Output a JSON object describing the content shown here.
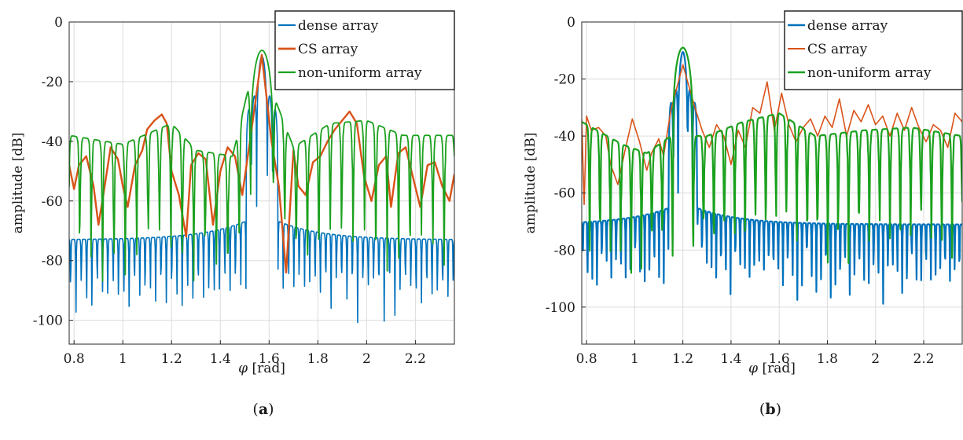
{
  "figure": {
    "captions": [
      {
        "open": "(",
        "letter": "a",
        "close": ")"
      },
      {
        "open": "(",
        "letter": "b",
        "close": ")"
      }
    ]
  },
  "chart_data": [
    {
      "type": "line",
      "panel": "a",
      "xlabel_symbol": "φ",
      "xlabel_unit": "[rad]",
      "ylabel": "amplitude [dB]",
      "xlim": [
        0.78,
        2.36
      ],
      "ylim": [
        -108,
        0
      ],
      "xticks": [
        0.8,
        1,
        1.2,
        1.4,
        1.6,
        1.8,
        2,
        2.2
      ],
      "xtick_labels": [
        "0.8",
        "1",
        "1.2",
        "1.4",
        "1.6",
        "1.8",
        "2",
        "2.2"
      ],
      "yticks": [
        0,
        -20,
        -40,
        -60,
        -80,
        -100
      ],
      "ytick_labels": [
        "0",
        "-20",
        "-40",
        "-60",
        "-80",
        "-100"
      ],
      "grid": true,
      "legend_position": "top-right",
      "series": [
        {
          "name": "dense array",
          "color": "#0072BD",
          "peak": 1.5708,
          "peak_value": -11.5,
          "lobe_period": 0.0218,
          "sidelobe_center": -73.0,
          "sidelobe_rise": 9.0,
          "null_depth": 24.0
        },
        {
          "name": "CS array",
          "color": "#D95319",
          "peak": 1.5708,
          "peak_value": -11.0,
          "x": [
            0.78,
            0.8,
            0.82,
            0.85,
            0.88,
            0.9,
            0.92,
            0.95,
            0.98,
            1.0,
            1.02,
            1.05,
            1.08,
            1.1,
            1.13,
            1.16,
            1.18,
            1.2,
            1.23,
            1.26,
            1.28,
            1.31,
            1.34,
            1.37,
            1.4,
            1.43,
            1.46,
            1.49,
            1.53,
            1.57,
            1.61,
            1.64,
            1.67,
            1.7,
            1.72,
            1.75,
            1.78,
            1.81,
            1.84,
            1.87,
            1.9,
            1.93,
            1.96,
            1.99,
            2.02,
            2.05,
            2.08,
            2.1,
            2.13,
            2.16,
            2.19,
            2.22,
            2.25,
            2.28,
            2.31,
            2.34,
            2.36
          ],
          "y": [
            -48,
            -56,
            -48,
            -45,
            -55,
            -68,
            -58,
            -42,
            -46,
            -55,
            -62,
            -48,
            -43,
            -36,
            -33,
            -31,
            -34,
            -50,
            -58,
            -72,
            -48,
            -44,
            -46,
            -68,
            -50,
            -42,
            -45,
            -58,
            -35,
            -11,
            -40,
            -55,
            -84,
            -43,
            -55,
            -58,
            -47,
            -45,
            -40,
            -36,
            -33,
            -30,
            -34,
            -52,
            -60,
            -48,
            -45,
            -62,
            -44,
            -42,
            -52,
            -62,
            -48,
            -47,
            -55,
            -60,
            -51
          ]
        },
        {
          "name": "non-uniform array",
          "color": "#1BA11E",
          "peak": 1.5708,
          "peak_value": -9.5,
          "lobe_period": 0.0467,
          "envelope": [
            [
              0.78,
              -38
            ],
            [
              1.0,
              -41
            ],
            [
              1.2,
              -34
            ],
            [
              1.3,
              -43
            ],
            [
              1.45,
              -45
            ],
            [
              1.55,
              -10
            ],
            [
              1.7,
              -42
            ],
            [
              1.85,
              -34
            ],
            [
              2.0,
              -33
            ],
            [
              2.15,
              -38
            ],
            [
              2.36,
              -38
            ]
          ],
          "null_depth": 40.0
        }
      ]
    },
    {
      "type": "line",
      "panel": "b",
      "xlabel_symbol": "φ",
      "xlabel_unit": "[rad]",
      "ylabel": "amplitude [dB]",
      "xlim": [
        0.78,
        2.36
      ],
      "ylim": [
        -113,
        0
      ],
      "xticks": [
        0.8,
        1,
        1.2,
        1.4,
        1.6,
        1.8,
        2,
        2.2
      ],
      "xtick_labels": [
        "0.8",
        "1",
        "1.2",
        "1.4",
        "1.6",
        "1.8",
        "2",
        "2.2"
      ],
      "yticks": [
        0,
        -20,
        -40,
        -60,
        -80,
        -100
      ],
      "ytick_labels": [
        "0",
        "-20",
        "-40",
        "-60",
        "-80",
        "-100"
      ],
      "grid": true,
      "legend_position": "top-right",
      "series": [
        {
          "name": "dense array",
          "color": "#0072BD",
          "peak": 1.2,
          "peak_value": -10.5,
          "lobe_period": 0.0198,
          "sidelobe_center": -71.0,
          "sidelobe_rise": 8.0,
          "null_depth": 24.0
        },
        {
          "name": "CS array",
          "color": "#D95319",
          "peak": 1.2,
          "peak_value": -15.0,
          "x": [
            0.78,
            0.79,
            0.8,
            0.82,
            0.85,
            0.88,
            0.9,
            0.93,
            0.96,
            0.99,
            1.02,
            1.05,
            1.07,
            1.1,
            1.12,
            1.15,
            1.2,
            1.25,
            1.28,
            1.31,
            1.34,
            1.37,
            1.4,
            1.43,
            1.46,
            1.49,
            1.52,
            1.55,
            1.58,
            1.61,
            1.64,
            1.67,
            1.7,
            1.73,
            1.76,
            1.79,
            1.82,
            1.85,
            1.88,
            1.91,
            1.94,
            1.97,
            2.0,
            2.03,
            2.06,
            2.09,
            2.12,
            2.15,
            2.18,
            2.21,
            2.24,
            2.27,
            2.3,
            2.33,
            2.36
          ],
          "y": [
            -34,
            -64,
            -33,
            -38,
            -37,
            -40,
            -50,
            -57,
            -45,
            -34,
            -42,
            -52,
            -46,
            -41,
            -47,
            -31,
            -15,
            -30,
            -38,
            -44,
            -36,
            -40,
            -50,
            -38,
            -44,
            -30,
            -32,
            -21,
            -38,
            -25,
            -36,
            -42,
            -37,
            -34,
            -40,
            -33,
            -37,
            -27,
            -40,
            -31,
            -35,
            -29,
            -36,
            -33,
            -40,
            -32,
            -38,
            -30,
            -37,
            -42,
            -36,
            -38,
            -44,
            -32,
            -35
          ]
        },
        {
          "name": "non-uniform array",
          "color": "#1BA11E",
          "peak": 1.2,
          "peak_value": -9.0,
          "lobe_period": 0.043,
          "envelope": [
            [
              0.78,
              -35
            ],
            [
              0.95,
              -43
            ],
            [
              1.05,
              -46
            ],
            [
              1.15,
              -40
            ],
            [
              1.3,
              -40
            ],
            [
              1.45,
              -35
            ],
            [
              1.6,
              -32
            ],
            [
              1.75,
              -40
            ],
            [
              1.95,
              -38
            ],
            [
              2.15,
              -37
            ],
            [
              2.36,
              -40
            ]
          ],
          "null_depth": 40.0
        }
      ]
    }
  ]
}
